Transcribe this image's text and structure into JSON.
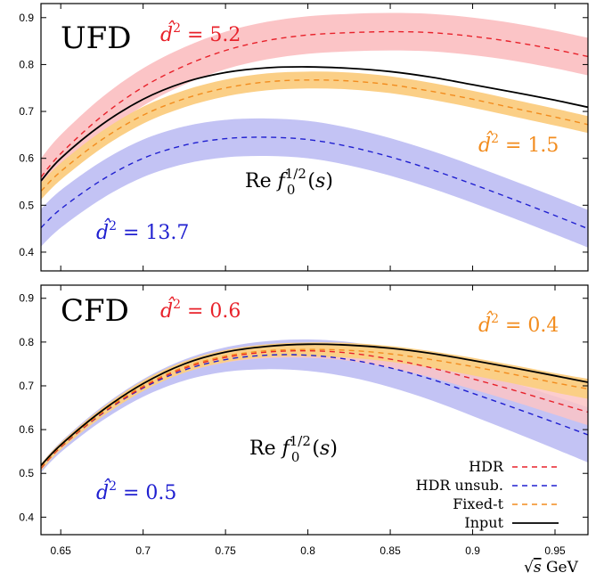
{
  "colors": {
    "hdr": "#e8222b",
    "hdr_band": "#fbc4c6",
    "unsub": "#2020d0",
    "unsub_band": "#c3c3f4",
    "fixed": "#f28c1e",
    "fixed_band": "#fbcf86",
    "input": "#000000"
  },
  "xaxis": {
    "label_main": "GeV",
    "label_sqrt": "√s",
    "range": [
      0.638,
      0.97
    ],
    "ticks": [
      "0.65",
      "0.7",
      "0.75",
      "0.8",
      "0.85",
      "0.9",
      "0.95"
    ],
    "tick_values": [
      0.65,
      0.7,
      0.75,
      0.8,
      0.85,
      0.9,
      0.95
    ]
  },
  "chart_data": [
    {
      "type": "line",
      "panel_label": "UFD",
      "center_label": "Re f0^1/2(s)",
      "center_text_re": "Re",
      "center_text_f": "f",
      "center_text_sub": "0",
      "center_text_sup": "1/2",
      "center_text_arg": "(s)",
      "ylim": [
        0.36,
        0.93
      ],
      "yticks": [
        "0.4",
        "0.5",
        "0.6",
        "0.7",
        "0.8",
        "0.9"
      ],
      "ytick_values": [
        0.4,
        0.5,
        0.6,
        0.7,
        0.8,
        0.9
      ],
      "annotations": [
        {
          "text": "d̂² = 5.2",
          "symbol": "d̂",
          "value": "= 5.2",
          "color_key": "hdr"
        },
        {
          "text": "d̂² = 1.5",
          "symbol": "d̂",
          "value": "= 1.5",
          "color_key": "fixed"
        },
        {
          "text": "d̂² = 13.7",
          "symbol": "d̂",
          "value": "= 13.7",
          "color_key": "unsub"
        }
      ],
      "x": [
        0.638,
        0.65,
        0.675,
        0.7,
        0.725,
        0.75,
        0.775,
        0.8,
        0.825,
        0.85,
        0.875,
        0.9,
        0.925,
        0.95,
        0.97
      ],
      "series": [
        {
          "name": "HDR",
          "style": "dashed",
          "color_key": "hdr",
          "values": [
            0.56,
            0.61,
            0.69,
            0.752,
            0.797,
            0.83,
            0.851,
            0.863,
            0.868,
            0.87,
            0.868,
            0.86,
            0.848,
            0.832,
            0.817
          ],
          "band_half": 0.04
        },
        {
          "name": "Fixed-t",
          "style": "dashed",
          "color_key": "fixed",
          "values": [
            0.53,
            0.572,
            0.64,
            0.692,
            0.727,
            0.75,
            0.763,
            0.767,
            0.765,
            0.757,
            0.743,
            0.726,
            0.707,
            0.688,
            0.672
          ],
          "band_half": 0.018
        },
        {
          "name": "HDR unsub.",
          "style": "dashed",
          "color_key": "unsub",
          "values": [
            0.452,
            0.492,
            0.554,
            0.6,
            0.628,
            0.642,
            0.645,
            0.64,
            0.625,
            0.603,
            0.576,
            0.545,
            0.512,
            0.478,
            0.45
          ],
          "band_half": 0.04
        },
        {
          "name": "Input",
          "style": "solid",
          "color_key": "input",
          "values": [
            0.552,
            0.6,
            0.672,
            0.726,
            0.762,
            0.783,
            0.793,
            0.795,
            0.792,
            0.785,
            0.773,
            0.757,
            0.741,
            0.724,
            0.709
          ],
          "band_half": 0
        }
      ]
    },
    {
      "type": "line",
      "panel_label": "CFD",
      "center_label": "Re f0^1/2(s)",
      "center_text_re": "Re",
      "center_text_f": "f",
      "center_text_sub": "0",
      "center_text_sup": "1/2",
      "center_text_arg": "(s)",
      "ylim": [
        0.36,
        0.93
      ],
      "yticks": [
        "0.4",
        "0.5",
        "0.6",
        "0.7",
        "0.8",
        "0.9"
      ],
      "ytick_values": [
        0.4,
        0.5,
        0.6,
        0.7,
        0.8,
        0.9
      ],
      "annotations": [
        {
          "text": "d̂² = 0.6",
          "symbol": "d̂",
          "value": "= 0.6",
          "color_key": "hdr"
        },
        {
          "text": "d̂² = 0.4",
          "symbol": "d̂",
          "value": "= 0.4",
          "color_key": "fixed"
        },
        {
          "text": "d̂² = 0.5",
          "symbol": "d̂",
          "value": "= 0.5",
          "color_key": "unsub"
        }
      ],
      "legend": [
        {
          "label": "HDR",
          "color_key": "hdr",
          "style": "dashed"
        },
        {
          "label": "HDR unsub.",
          "color_key": "unsub",
          "style": "dashed"
        },
        {
          "label": "Fixed-t",
          "color_key": "fixed",
          "style": "dashed"
        },
        {
          "label": "Input",
          "color_key": "input",
          "style": "solid"
        }
      ],
      "x": [
        0.638,
        0.65,
        0.675,
        0.7,
        0.725,
        0.75,
        0.775,
        0.8,
        0.825,
        0.85,
        0.875,
        0.9,
        0.925,
        0.95,
        0.97
      ],
      "series": [
        {
          "name": "HDR unsub.",
          "style": "dashed",
          "color_key": "unsub",
          "values": [
            0.512,
            0.56,
            0.636,
            0.695,
            0.736,
            0.76,
            0.77,
            0.77,
            0.76,
            0.741,
            0.715,
            0.683,
            0.65,
            0.616,
            0.588
          ],
          "band_half": [
            0.01,
            0.012,
            0.016,
            0.02,
            0.024,
            0.028,
            0.032,
            0.036,
            0.04,
            0.044,
            0.048,
            0.052,
            0.056,
            0.06,
            0.063
          ]
        },
        {
          "name": "HDR",
          "style": "dashed",
          "color_key": "hdr",
          "values": [
            0.512,
            0.56,
            0.637,
            0.697,
            0.74,
            0.765,
            0.777,
            0.78,
            0.775,
            0.761,
            0.741,
            0.716,
            0.69,
            0.662,
            0.64
          ],
          "band_half": [
            0.004,
            0.005,
            0.006,
            0.008,
            0.01,
            0.012,
            0.014,
            0.016,
            0.018,
            0.02,
            0.022,
            0.024,
            0.026,
            0.028,
            0.03
          ]
        },
        {
          "name": "Fixed-t",
          "style": "dashed",
          "color_key": "fixed",
          "values": [
            0.514,
            0.562,
            0.639,
            0.7,
            0.743,
            0.768,
            0.78,
            0.783,
            0.781,
            0.773,
            0.76,
            0.744,
            0.726,
            0.707,
            0.693
          ],
          "band_half": [
            0.008,
            0.008,
            0.01,
            0.012,
            0.013,
            0.014,
            0.015,
            0.016,
            0.017,
            0.018,
            0.019,
            0.02,
            0.021,
            0.022,
            0.023
          ]
        },
        {
          "name": "Input",
          "style": "solid",
          "color_key": "input",
          "values": [
            0.518,
            0.565,
            0.643,
            0.705,
            0.75,
            0.777,
            0.79,
            0.795,
            0.793,
            0.786,
            0.774,
            0.758,
            0.741,
            0.723,
            0.708
          ],
          "band_half": 0
        }
      ]
    }
  ]
}
